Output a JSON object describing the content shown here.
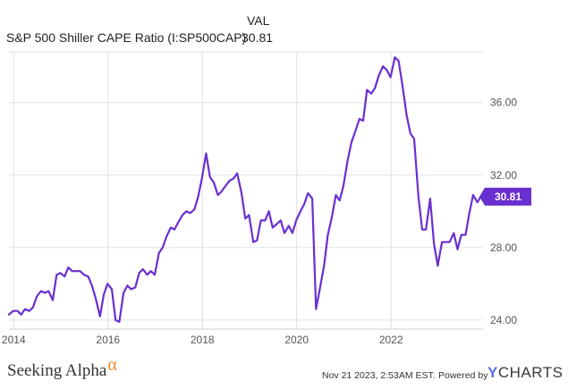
{
  "legend": {
    "header": "VAL",
    "series_name": "S&P 500 Shiller CAPE Ratio (I:SP500CAP)",
    "series_value": "30.81"
  },
  "footer": {
    "brand": "Seeking Alpha",
    "brand_symbol": "α",
    "timestamp": "Nov 21 2023, 2:53AM EST.",
    "powered_by": "Powered by",
    "provider_mark": "Y",
    "provider_rest": "CHARTS"
  },
  "colors": {
    "line": "#6a2fcf",
    "grid": "#e1e1e1",
    "badge": "#6a2fcf",
    "brand_alpha": "#f08a24",
    "ycharts_mark": "#5b6ee1"
  },
  "chart_data": {
    "type": "line",
    "title": "",
    "xlabel": "",
    "ylabel": "",
    "x_ticks": [
      "2014",
      "2016",
      "2018",
      "2020",
      "2022"
    ],
    "x_tick_values": [
      2014,
      2016,
      2018,
      2020,
      2022
    ],
    "y_ticks": [
      "24.00",
      "28.00",
      "32.00",
      "36.00"
    ],
    "y_tick_values": [
      24,
      28,
      32,
      36
    ],
    "xlim": [
      2013.9,
      2023.95
    ],
    "ylim": [
      23.5,
      38.8
    ],
    "grid": true,
    "last_value_label": "30.81",
    "series": [
      {
        "name": "S&P 500 Shiller CAPE Ratio (I:SP500CAP)",
        "x": [
          2013.9,
          2013.99,
          2014.08,
          2014.16,
          2014.24,
          2014.33,
          2014.41,
          2014.49,
          2014.58,
          2014.66,
          2014.74,
          2014.83,
          2014.91,
          2014.99,
          2015.08,
          2015.16,
          2015.24,
          2015.33,
          2015.41,
          2015.49,
          2015.58,
          2015.66,
          2015.74,
          2015.83,
          2015.91,
          2015.99,
          2016.08,
          2016.16,
          2016.24,
          2016.33,
          2016.41,
          2016.49,
          2016.58,
          2016.66,
          2016.74,
          2016.83,
          2016.91,
          2016.99,
          2017.08,
          2017.16,
          2017.24,
          2017.33,
          2017.41,
          2017.49,
          2017.58,
          2017.66,
          2017.74,
          2017.83,
          2017.91,
          2017.99,
          2018.08,
          2018.16,
          2018.24,
          2018.33,
          2018.41,
          2018.49,
          2018.58,
          2018.66,
          2018.74,
          2018.83,
          2018.91,
          2018.99,
          2019.08,
          2019.16,
          2019.24,
          2019.33,
          2019.41,
          2019.49,
          2019.58,
          2019.66,
          2019.74,
          2019.83,
          2019.91,
          2019.99,
          2020.08,
          2020.16,
          2020.24,
          2020.33,
          2020.41,
          2020.49,
          2020.58,
          2020.66,
          2020.74,
          2020.83,
          2020.91,
          2020.99,
          2021.08,
          2021.16,
          2021.24,
          2021.33,
          2021.41,
          2021.49,
          2021.58,
          2021.66,
          2021.74,
          2021.83,
          2021.91,
          2021.99,
          2022.08,
          2022.16,
          2022.24,
          2022.33,
          2022.41,
          2022.49,
          2022.58,
          2022.66,
          2022.74,
          2022.83,
          2022.91,
          2022.99,
          2023.08,
          2023.16,
          2023.24,
          2023.33,
          2023.41,
          2023.49,
          2023.58,
          2023.66,
          2023.74,
          2023.83,
          2023.9
        ],
        "values": [
          24.3,
          24.5,
          24.5,
          24.3,
          24.6,
          24.5,
          24.7,
          25.3,
          25.6,
          25.5,
          25.6,
          25.1,
          26.5,
          26.6,
          26.4,
          26.9,
          26.7,
          26.7,
          26.7,
          26.5,
          26.4,
          25.9,
          25.2,
          24.2,
          25.4,
          26.0,
          25.7,
          24.0,
          23.9,
          25.5,
          25.9,
          25.7,
          25.8,
          26.6,
          26.8,
          26.5,
          26.7,
          26.5,
          27.7,
          28.0,
          28.6,
          29.1,
          29.0,
          29.4,
          29.8,
          30.0,
          29.9,
          30.1,
          30.8,
          31.8,
          33.2,
          31.9,
          31.6,
          30.9,
          31.1,
          31.4,
          31.7,
          31.8,
          32.1,
          31.0,
          29.6,
          29.8,
          28.3,
          28.4,
          29.5,
          29.5,
          30.0,
          29.1,
          29.3,
          29.5,
          28.8,
          29.2,
          28.8,
          29.5,
          30.0,
          30.4,
          31.0,
          30.7,
          24.6,
          25.7,
          27.0,
          28.7,
          29.6,
          30.9,
          30.6,
          31.4,
          32.8,
          33.8,
          34.4,
          35.1,
          35.0,
          36.7,
          36.5,
          36.8,
          37.5,
          38.0,
          37.8,
          37.4,
          38.5,
          38.3,
          37.0,
          35.3,
          34.3,
          34.0,
          30.8,
          29.0,
          29.0,
          30.7,
          28.2,
          27.0,
          28.3,
          28.3,
          28.3,
          28.8,
          27.9,
          28.7,
          28.7,
          29.9,
          30.9,
          30.5,
          30.81
        ]
      }
    ]
  }
}
